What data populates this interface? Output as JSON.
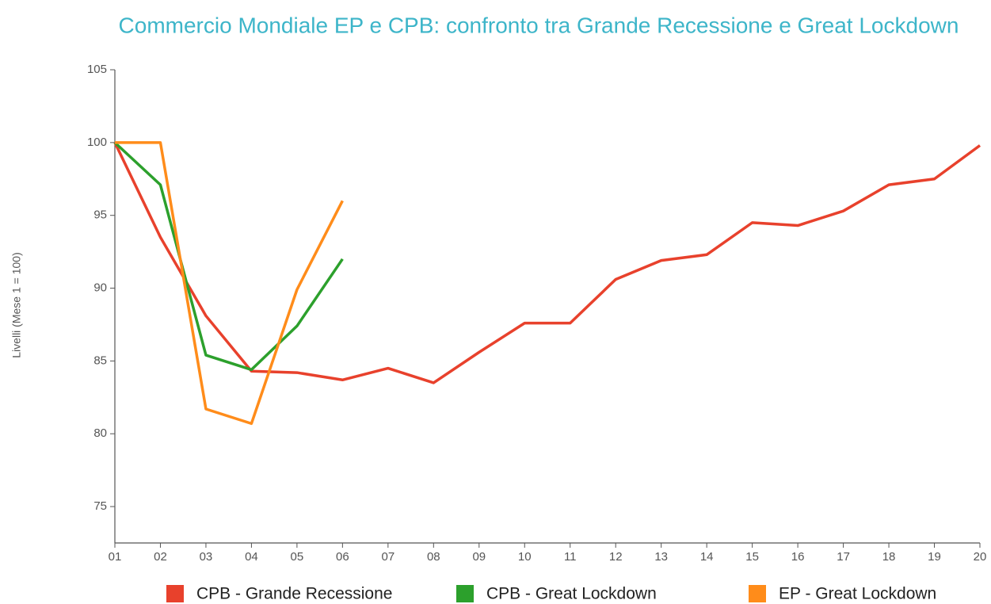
{
  "chart_data": {
    "type": "line",
    "title": "Commercio Mondiale EP e CPB: confronto tra Grande Recessione e Great Lockdown",
    "y_label": "Livelli (Mese 1 = 100)",
    "categories": [
      "01",
      "02",
      "03",
      "04",
      "05",
      "06",
      "07",
      "08",
      "09",
      "10",
      "11",
      "12",
      "13",
      "14",
      "15",
      "16",
      "17",
      "18",
      "19",
      "20"
    ],
    "series": [
      {
        "name": "CPB - Grande Recessione",
        "color": "#e8412c",
        "values": [
          100,
          93.5,
          88.1,
          84.3,
          84.2,
          83.7,
          84.5,
          83.5,
          85.6,
          87.6,
          87.6,
          90.6,
          91.9,
          92.3,
          94.5,
          94.3,
          95.3,
          97.1,
          97.5,
          99.8
        ]
      },
      {
        "name": "CPB - Great Lockdown",
        "color": "#2ca02c",
        "values": [
          100,
          97.1,
          85.4,
          84.4,
          87.4,
          92,
          null,
          null,
          null,
          null,
          null,
          null,
          null,
          null,
          null,
          null,
          null,
          null,
          null,
          null
        ]
      },
      {
        "name": "EP - Great Lockdown",
        "color": "#ff8c1a",
        "values": [
          100,
          100,
          81.7,
          80.7,
          89.9,
          96,
          null,
          null,
          null,
          null,
          null,
          null,
          null,
          null,
          null,
          null,
          null,
          null,
          null,
          null
        ]
      }
    ],
    "ylim": [
      72.5,
      105
    ],
    "yticks": [
      75,
      80,
      85,
      90,
      95,
      100,
      105
    ],
    "grid": false,
    "legend": "bottom"
  }
}
